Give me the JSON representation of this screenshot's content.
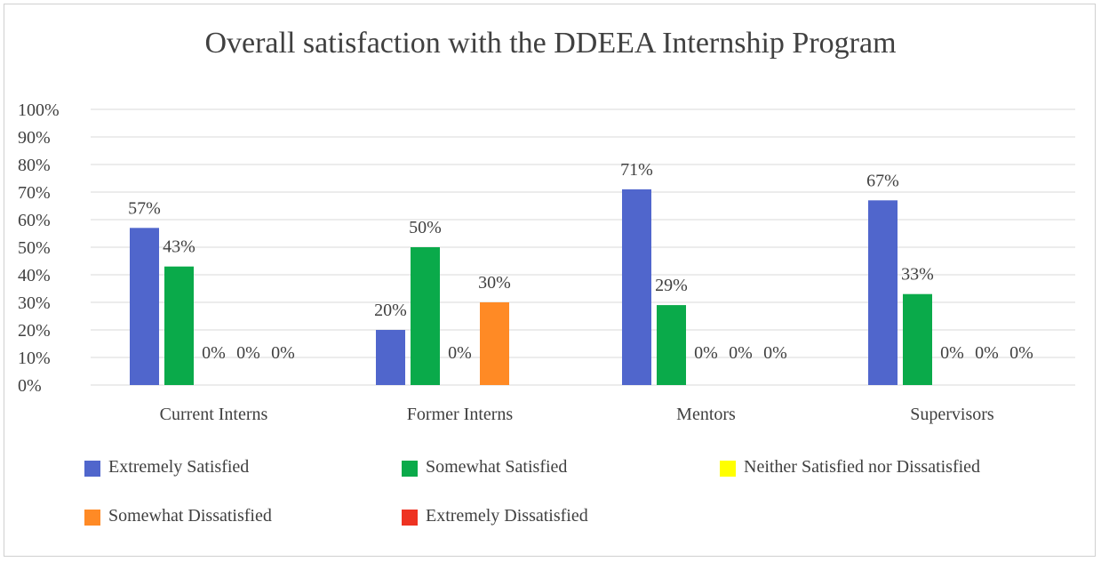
{
  "chart_data": {
    "type": "bar",
    "title": "Overall satisfaction with the DDEEA Internship Program",
    "xlabel": "",
    "ylabel": "",
    "ylim": [
      0,
      100
    ],
    "y_ticks": [
      "0%",
      "10%",
      "20%",
      "30%",
      "40%",
      "50%",
      "60%",
      "70%",
      "80%",
      "90%",
      "100%"
    ],
    "categories": [
      "Current Interns",
      "Former Interns",
      "Mentors",
      "Supervisors"
    ],
    "series": [
      {
        "name": "Extremely Satisfied",
        "color": "#5066cc",
        "values": [
          57,
          20,
          71,
          67
        ],
        "labels": [
          "57%",
          "20%",
          "71%",
          "67%"
        ]
      },
      {
        "name": "Somewhat Satisfied",
        "color": "#0aaa4a",
        "values": [
          43,
          50,
          29,
          33
        ],
        "labels": [
          "43%",
          "50%",
          "29%",
          "33%"
        ]
      },
      {
        "name": "Neither Satisfied nor Dissatisfied",
        "color": "#ffff00",
        "values": [
          0,
          0,
          0,
          0
        ],
        "labels": [
          "0%",
          "0%",
          "0%",
          "0%"
        ]
      },
      {
        "name": "Somewhat Dissatisfied",
        "color": "#ff8a25",
        "values": [
          0,
          30,
          0,
          0
        ],
        "labels": [
          "0%",
          "30%",
          "0%",
          "0%"
        ]
      },
      {
        "name": "Extremely Dissatisfied",
        "color": "#ee3322",
        "values": [
          0,
          0,
          0,
          0
        ],
        "labels": [
          "0%",
          "",
          "0%",
          "0%"
        ]
      }
    ],
    "grid": true,
    "legend_position": "bottom"
  }
}
